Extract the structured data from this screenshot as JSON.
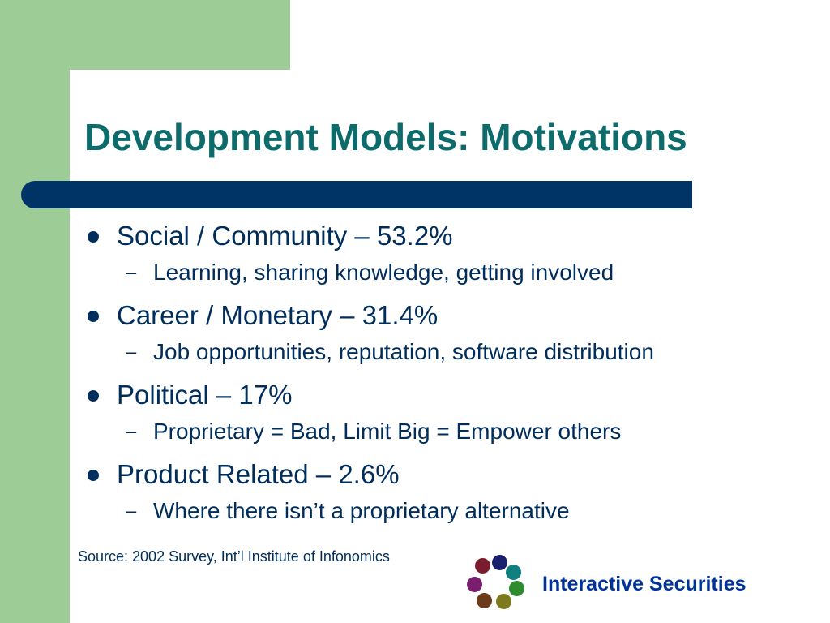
{
  "slide": {
    "title": "Development Models: Motivations",
    "items": [
      {
        "label": "Social / Community – 53.2%",
        "sub": "Learning, sharing knowledge, getting involved"
      },
      {
        "label": "Career / Monetary – 31.4%",
        "sub": "Job opportunities, reputation, software distribution"
      },
      {
        "label": "Political – 17%",
        "sub": "Proprietary = Bad, Limit Big = Empower others"
      },
      {
        "label": "Product Related – 2.6%",
        "sub": "Where there isn’t a proprietary alternative"
      }
    ],
    "source": "Source: 2002 Survey, Int’l Institute of Infonomics",
    "brand": "Interactive Securities"
  },
  "colors": {
    "background_accent": "#9dcc97",
    "title": "#0e6b6b",
    "rule": "#003366",
    "body_text": "#002e5c",
    "brand_text": "#003399",
    "logo_dots": [
      "#7a1c2e",
      "#1a1f6e",
      "#0f7f7f",
      "#2e8b2e",
      "#7d7a1e",
      "#6b3a1a",
      "#7a1f6e"
    ]
  }
}
